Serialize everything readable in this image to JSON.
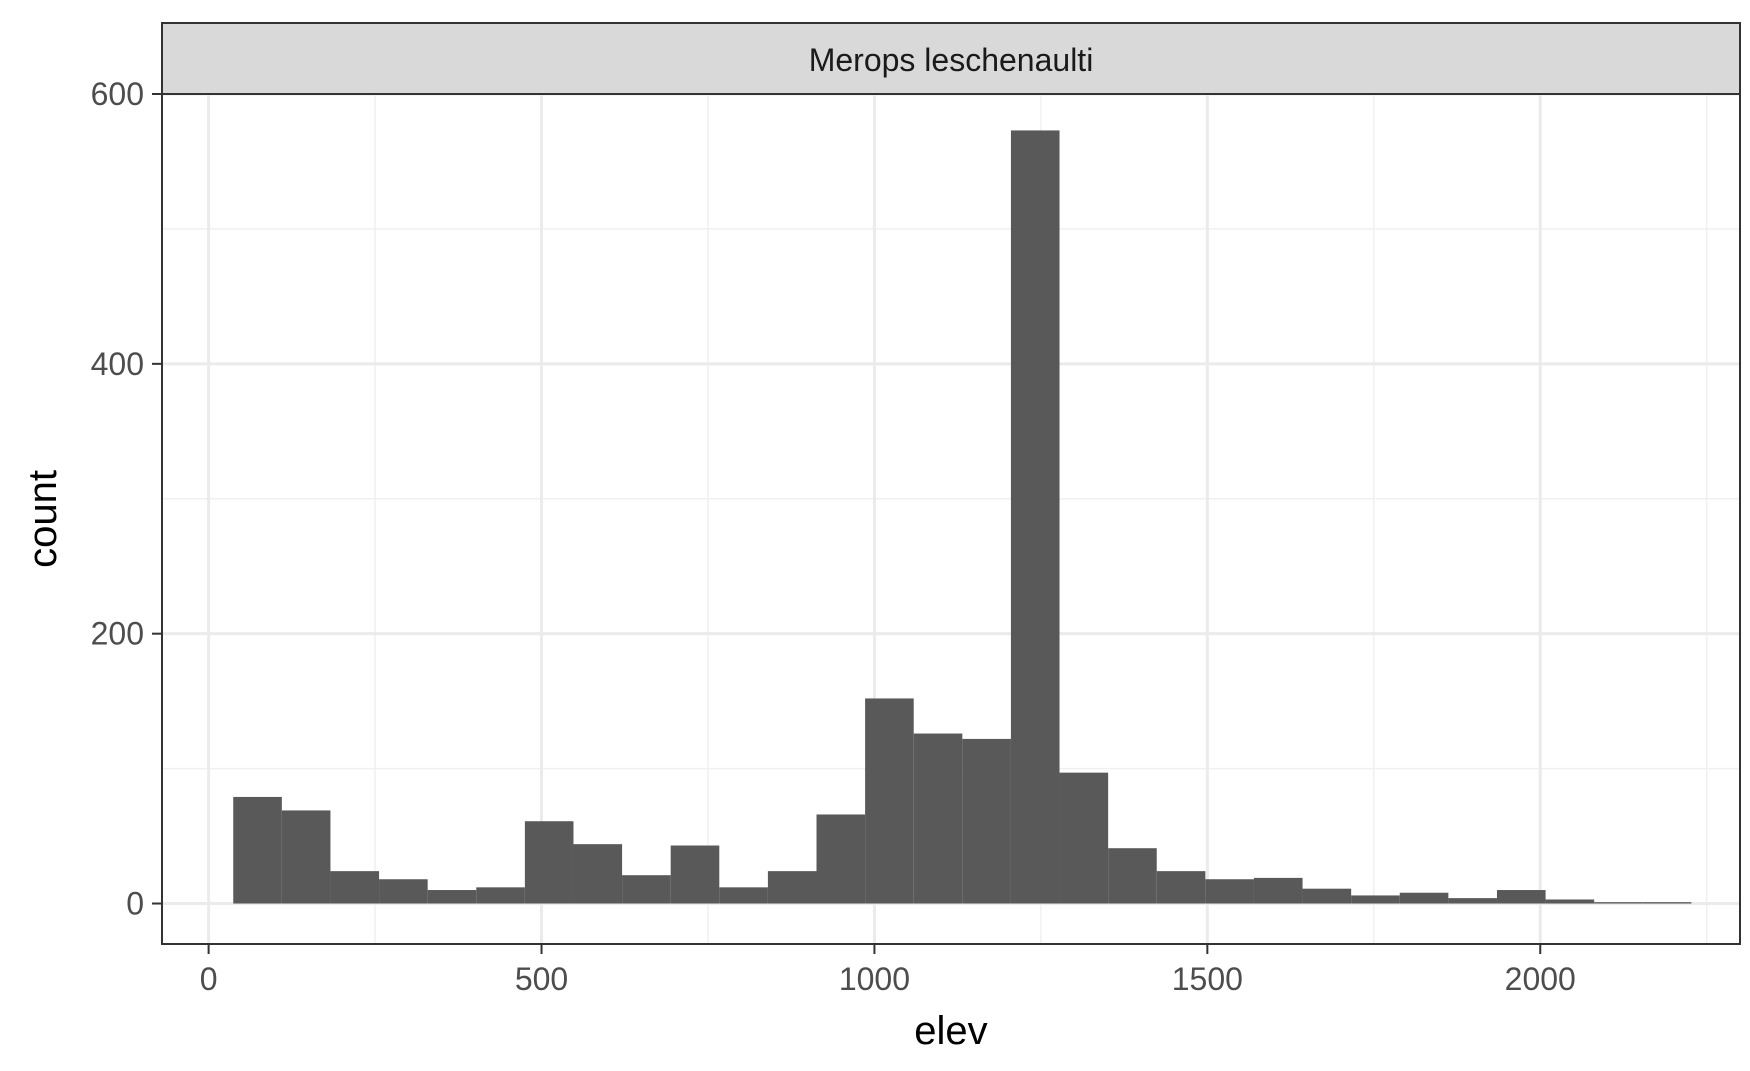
{
  "chart_data": {
    "type": "bar",
    "subtype": "histogram",
    "facet_label": "Merops leschenaulti",
    "xlabel": "elev",
    "ylabel": "count",
    "xlim": [
      -70,
      2300
    ],
    "ylim": [
      -30,
      600
    ],
    "x_ticks": [
      0,
      500,
      1000,
      1500,
      2000
    ],
    "x_tick_labels": [
      "0",
      "500",
      "1000",
      "1500",
      "2000"
    ],
    "y_ticks": [
      0,
      200,
      400,
      600
    ],
    "y_tick_labels": [
      "0",
      "200",
      "400",
      "600"
    ],
    "grid": true,
    "legend": "none",
    "bar_color": "#595959",
    "bins": [
      {
        "x0": 37,
        "x1": 110,
        "count": 79
      },
      {
        "x0": 110,
        "x1": 183,
        "count": 69
      },
      {
        "x0": 183,
        "x1": 256,
        "count": 24
      },
      {
        "x0": 256,
        "x1": 329,
        "count": 18
      },
      {
        "x0": 329,
        "x1": 402,
        "count": 10
      },
      {
        "x0": 402,
        "x1": 475,
        "count": 12
      },
      {
        "x0": 475,
        "x1": 548,
        "count": 61
      },
      {
        "x0": 548,
        "x1": 621,
        "count": 44
      },
      {
        "x0": 621,
        "x1": 694,
        "count": 21
      },
      {
        "x0": 694,
        "x1": 767,
        "count": 43
      },
      {
        "x0": 767,
        "x1": 840,
        "count": 12
      },
      {
        "x0": 840,
        "x1": 913,
        "count": 24
      },
      {
        "x0": 913,
        "x1": 986,
        "count": 66
      },
      {
        "x0": 986,
        "x1": 1059,
        "count": 152
      },
      {
        "x0": 1059,
        "x1": 1132,
        "count": 126
      },
      {
        "x0": 1132,
        "x1": 1205,
        "count": 122
      },
      {
        "x0": 1205,
        "x1": 1278,
        "count": 573
      },
      {
        "x0": 1278,
        "x1": 1351,
        "count": 97
      },
      {
        "x0": 1351,
        "x1": 1424,
        "count": 41
      },
      {
        "x0": 1424,
        "x1": 1497,
        "count": 24
      },
      {
        "x0": 1497,
        "x1": 1570,
        "count": 18
      },
      {
        "x0": 1570,
        "x1": 1643,
        "count": 19
      },
      {
        "x0": 1643,
        "x1": 1716,
        "count": 11
      },
      {
        "x0": 1716,
        "x1": 1789,
        "count": 6
      },
      {
        "x0": 1789,
        "x1": 1862,
        "count": 8
      },
      {
        "x0": 1862,
        "x1": 1935,
        "count": 4
      },
      {
        "x0": 1935,
        "x1": 2008,
        "count": 10
      },
      {
        "x0": 2008,
        "x1": 2081,
        "count": 3
      },
      {
        "x0": 2081,
        "x1": 2154,
        "count": 1
      },
      {
        "x0": 2154,
        "x1": 2227,
        "count": 1
      }
    ]
  }
}
